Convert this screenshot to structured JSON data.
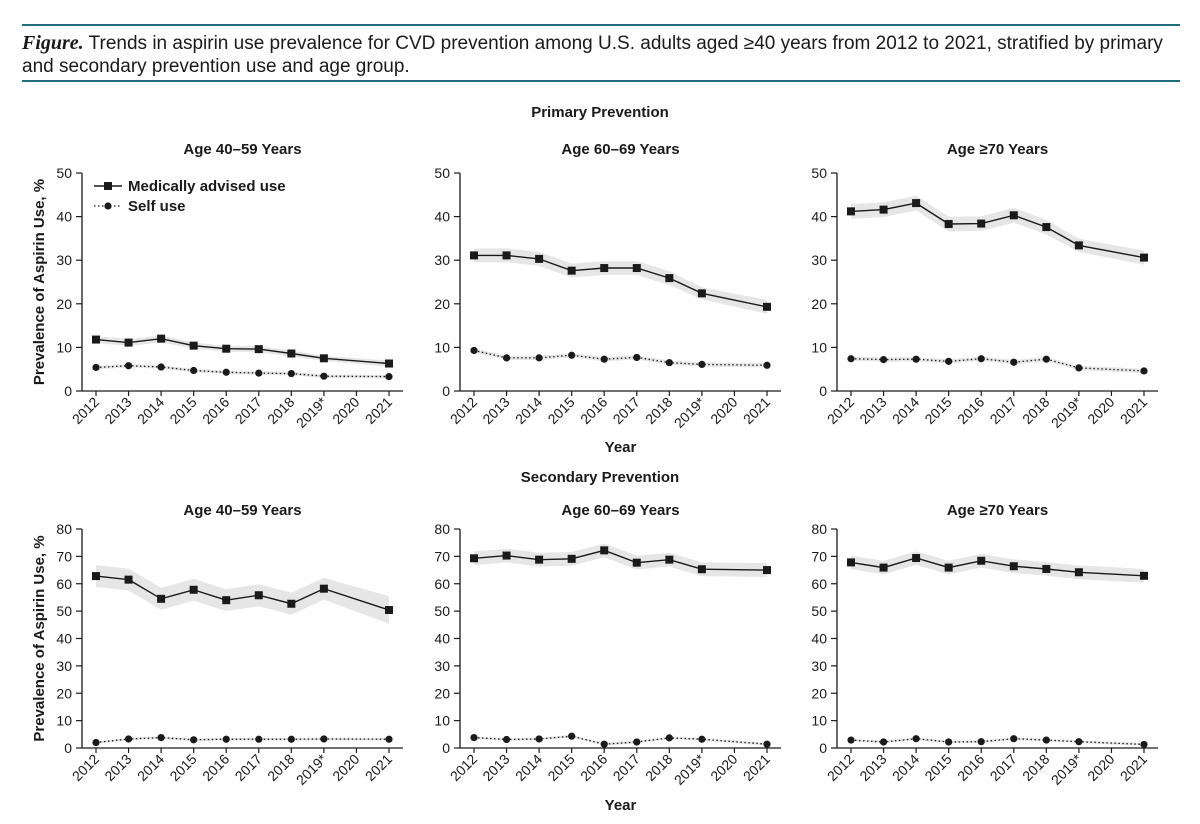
{
  "figure": {
    "label": "Figure.",
    "caption": "Trends in aspirin use prevalence for CVD prevention among U.S. adults aged ≥40 years from 2012 to 2021, stratified by primary and secondary prevention use and age group."
  },
  "sections": {
    "primary": "Primary Prevention",
    "secondary": "Secondary Prevention"
  },
  "legend": {
    "medical": "Medically advised use",
    "self": "Self use"
  },
  "colors": {
    "rule": "#1f6f7a",
    "line": "#1a1a1a",
    "band": "#e6e6e6"
  },
  "chart_data": [
    {
      "type": "line",
      "section": "Primary Prevention",
      "title": "Age 40–59 Years",
      "xlabel": "",
      "ylabel": "Prevalence of Aspirin Use, %",
      "ylim": [
        0,
        50
      ],
      "yticks": [
        0,
        10,
        20,
        30,
        40,
        50
      ],
      "x": [
        "2012",
        "2013",
        "2014",
        "2015",
        "2016",
        "2017",
        "2018",
        "2019*",
        "2020",
        "2021"
      ],
      "series": [
        {
          "name": "Medically advised use",
          "values": [
            11.8,
            11.1,
            12.0,
            10.4,
            9.7,
            9.6,
            8.6,
            7.5,
            null,
            6.3
          ],
          "ci": [
            [
              11.0,
              12.6
            ],
            [
              10.3,
              11.9
            ],
            [
              11.2,
              12.8
            ],
            [
              9.7,
              11.1
            ],
            [
              9.0,
              10.4
            ],
            [
              8.9,
              10.3
            ],
            [
              7.9,
              9.3
            ],
            [
              6.9,
              8.1
            ],
            [
              null,
              null
            ],
            [
              5.6,
              7.0
            ]
          ]
        },
        {
          "name": "Self use",
          "values": [
            5.4,
            5.8,
            5.5,
            4.7,
            4.3,
            4.1,
            4.0,
            3.4,
            null,
            3.3
          ],
          "ci": [
            [
              5.0,
              5.8
            ],
            [
              5.4,
              6.2
            ],
            [
              5.1,
              5.9
            ],
            [
              4.3,
              5.1
            ],
            [
              3.9,
              4.7
            ],
            [
              3.7,
              4.5
            ],
            [
              3.6,
              4.4
            ],
            [
              3.0,
              3.8
            ],
            [
              null,
              null
            ],
            [
              2.9,
              3.7
            ]
          ]
        }
      ]
    },
    {
      "type": "line",
      "section": "Primary Prevention",
      "title": "Age 60–69 Years",
      "xlabel": "Year",
      "ylabel": "",
      "ylim": [
        0,
        50
      ],
      "yticks": [
        0,
        10,
        20,
        30,
        40,
        50
      ],
      "x": [
        "2012",
        "2013",
        "2014",
        "2015",
        "2016",
        "2017",
        "2018",
        "2019*",
        "2020",
        "2021"
      ],
      "series": [
        {
          "name": "Medically advised use",
          "values": [
            31.1,
            31.1,
            30.3,
            27.6,
            28.2,
            28.2,
            25.9,
            22.4,
            null,
            19.3
          ],
          "ci": [
            [
              29.5,
              32.7
            ],
            [
              29.5,
              32.7
            ],
            [
              28.7,
              31.9
            ],
            [
              26.0,
              29.2
            ],
            [
              26.6,
              29.8
            ],
            [
              26.6,
              29.8
            ],
            [
              24.3,
              27.5
            ],
            [
              21.0,
              23.8
            ],
            [
              null,
              null
            ],
            [
              17.7,
              20.9
            ]
          ]
        },
        {
          "name": "Self use",
          "values": [
            9.3,
            7.6,
            7.6,
            8.2,
            7.3,
            7.7,
            6.5,
            6.1,
            null,
            5.9
          ],
          "ci": [
            [
              8.8,
              9.8
            ],
            [
              7.1,
              8.1
            ],
            [
              7.1,
              8.1
            ],
            [
              7.7,
              8.7
            ],
            [
              6.8,
              7.8
            ],
            [
              7.2,
              8.2
            ],
            [
              6.0,
              7.0
            ],
            [
              5.6,
              6.6
            ],
            [
              null,
              null
            ],
            [
              5.4,
              6.4
            ]
          ]
        }
      ]
    },
    {
      "type": "line",
      "section": "Primary Prevention",
      "title": "Age ≥70 Years",
      "xlabel": "",
      "ylabel": "",
      "ylim": [
        0,
        50
      ],
      "yticks": [
        0,
        10,
        20,
        30,
        40,
        50
      ],
      "x": [
        "2012",
        "2013",
        "2014",
        "2015",
        "2016",
        "2017",
        "2018",
        "2019*",
        "2020",
        "2021"
      ],
      "series": [
        {
          "name": "Medically advised use",
          "values": [
            41.2,
            41.6,
            43.1,
            38.3,
            38.4,
            40.3,
            37.6,
            33.4,
            null,
            30.6
          ],
          "ci": [
            [
              39.5,
              42.9
            ],
            [
              39.9,
              43.3
            ],
            [
              41.4,
              44.8
            ],
            [
              36.6,
              40.0
            ],
            [
              36.7,
              40.1
            ],
            [
              38.6,
              42.0
            ],
            [
              35.9,
              39.3
            ],
            [
              31.9,
              34.9
            ],
            [
              null,
              null
            ],
            [
              29.0,
              32.2
            ]
          ]
        },
        {
          "name": "Self use",
          "values": [
            7.4,
            7.2,
            7.3,
            6.8,
            7.4,
            6.6,
            7.3,
            5.3,
            null,
            4.6
          ],
          "ci": [
            [
              6.9,
              7.9
            ],
            [
              6.7,
              7.7
            ],
            [
              6.8,
              7.8
            ],
            [
              6.3,
              7.3
            ],
            [
              6.9,
              7.9
            ],
            [
              6.1,
              7.1
            ],
            [
              6.8,
              7.8
            ],
            [
              4.8,
              5.8
            ],
            [
              null,
              null
            ],
            [
              4.1,
              5.1
            ]
          ]
        }
      ]
    },
    {
      "type": "line",
      "section": "Secondary Prevention",
      "title": "Age 40–59 Years",
      "xlabel": "",
      "ylabel": "Prevalence of Aspirin Use, %",
      "ylim": [
        0,
        80
      ],
      "yticks": [
        0,
        10,
        20,
        30,
        40,
        50,
        60,
        70,
        80
      ],
      "x": [
        "2012",
        "2013",
        "2014",
        "2015",
        "2016",
        "2017",
        "2018",
        "2019*",
        "2020",
        "2021"
      ],
      "series": [
        {
          "name": "Medically advised use",
          "values": [
            62.8,
            61.5,
            54.5,
            57.8,
            54.0,
            55.8,
            52.7,
            58.2,
            null,
            50.4
          ],
          "ci": [
            [
              58.8,
              66.8
            ],
            [
              57.5,
              65.5
            ],
            [
              50.5,
              58.5
            ],
            [
              53.8,
              61.8
            ],
            [
              50.0,
              58.0
            ],
            [
              51.8,
              59.8
            ],
            [
              48.7,
              56.7
            ],
            [
              54.2,
              62.2
            ],
            [
              null,
              null
            ],
            [
              45.4,
              55.4
            ]
          ]
        },
        {
          "name": "Self use",
          "values": [
            2.0,
            3.3,
            3.8,
            3.0,
            3.2,
            3.2,
            3.2,
            3.3,
            null,
            3.2
          ],
          "ci": [
            [
              1.5,
              2.5
            ],
            [
              2.8,
              3.8
            ],
            [
              3.3,
              4.3
            ],
            [
              2.5,
              3.5
            ],
            [
              2.7,
              3.7
            ],
            [
              2.7,
              3.7
            ],
            [
              2.7,
              3.7
            ],
            [
              2.8,
              3.8
            ],
            [
              null,
              null
            ],
            [
              2.7,
              3.7
            ]
          ]
        }
      ]
    },
    {
      "type": "line",
      "section": "Secondary Prevention",
      "title": "Age 60–69 Years",
      "xlabel": "Year",
      "ylabel": "",
      "ylim": [
        0,
        80
      ],
      "yticks": [
        0,
        10,
        20,
        30,
        40,
        50,
        60,
        70,
        80
      ],
      "x": [
        "2012",
        "2013",
        "2014",
        "2015",
        "2016",
        "2017",
        "2018",
        "2019*",
        "2020",
        "2021"
      ],
      "series": [
        {
          "name": "Medically advised use",
          "values": [
            69.3,
            70.3,
            68.8,
            69.1,
            72.2,
            67.7,
            68.8,
            65.3,
            null,
            65.0
          ],
          "ci": [
            [
              66.8,
              71.8
            ],
            [
              67.8,
              72.8
            ],
            [
              66.3,
              71.3
            ],
            [
              66.6,
              71.6
            ],
            [
              69.7,
              74.7
            ],
            [
              65.2,
              70.2
            ],
            [
              66.3,
              71.3
            ],
            [
              62.8,
              67.8
            ],
            [
              null,
              null
            ],
            [
              62.5,
              67.5
            ]
          ]
        },
        {
          "name": "Self use",
          "values": [
            3.8,
            3.1,
            3.3,
            4.3,
            1.4,
            2.2,
            3.7,
            3.2,
            null,
            1.4
          ],
          "ci": [
            [
              3.3,
              4.3
            ],
            [
              2.6,
              3.6
            ],
            [
              2.8,
              3.8
            ],
            [
              3.8,
              4.8
            ],
            [
              0.9,
              1.9
            ],
            [
              1.7,
              2.7
            ],
            [
              3.2,
              4.2
            ],
            [
              2.7,
              3.7
            ],
            [
              null,
              null
            ],
            [
              0.9,
              1.9
            ]
          ]
        }
      ]
    },
    {
      "type": "line",
      "section": "Secondary Prevention",
      "title": "Age ≥70 Years",
      "xlabel": "",
      "ylabel": "",
      "ylim": [
        0,
        80
      ],
      "yticks": [
        0,
        10,
        20,
        30,
        40,
        50,
        60,
        70,
        80
      ],
      "x": [
        "2012",
        "2013",
        "2014",
        "2015",
        "2016",
        "2017",
        "2018",
        "2019*",
        "2020",
        "2021"
      ],
      "series": [
        {
          "name": "Medically advised use",
          "values": [
            67.8,
            65.9,
            69.4,
            65.9,
            68.4,
            66.4,
            65.4,
            64.2,
            null,
            62.9
          ],
          "ci": [
            [
              65.3,
              70.3
            ],
            [
              63.4,
              68.4
            ],
            [
              66.9,
              71.9
            ],
            [
              63.4,
              68.4
            ],
            [
              65.9,
              70.9
            ],
            [
              63.9,
              68.9
            ],
            [
              62.9,
              67.9
            ],
            [
              61.7,
              66.7
            ],
            [
              null,
              null
            ],
            [
              60.4,
              65.4
            ]
          ]
        },
        {
          "name": "Self use",
          "values": [
            2.9,
            2.2,
            3.4,
            2.2,
            2.3,
            3.4,
            2.9,
            2.3,
            null,
            1.3
          ],
          "ci": [
            [
              2.4,
              3.4
            ],
            [
              1.7,
              2.7
            ],
            [
              2.9,
              3.9
            ],
            [
              1.7,
              2.7
            ],
            [
              1.8,
              2.8
            ],
            [
              2.9,
              3.9
            ],
            [
              2.4,
              3.4
            ],
            [
              1.8,
              2.8
            ],
            [
              null,
              null
            ],
            [
              0.8,
              1.8
            ]
          ]
        }
      ]
    }
  ]
}
